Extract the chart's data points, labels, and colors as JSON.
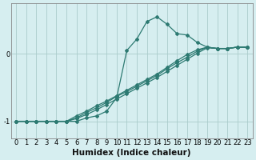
{
  "xlabel": "Humidex (Indice chaleur)",
  "background_color": "#d6eef0",
  "grid_color": "#aacccc",
  "line_color": "#2d7a72",
  "x_values": [
    0,
    1,
    2,
    3,
    4,
    5,
    6,
    7,
    8,
    9,
    10,
    11,
    12,
    13,
    14,
    15,
    16,
    17,
    18,
    19,
    20,
    21,
    22,
    23
  ],
  "lines": [
    [
      -1.0,
      -1.0,
      -1.0,
      -1.0,
      -1.0,
      -1.0,
      -1.0,
      -0.95,
      -0.92,
      -0.85,
      -0.65,
      0.05,
      0.22,
      0.48,
      0.55,
      0.44,
      0.3,
      0.28,
      0.17,
      0.1,
      0.08,
      0.08,
      0.1,
      0.1
    ],
    [
      -1.0,
      -1.0,
      -1.0,
      -1.0,
      -1.0,
      -1.0,
      -0.92,
      -0.85,
      -0.77,
      -0.7,
      -0.62,
      -0.54,
      -0.46,
      -0.38,
      -0.3,
      -0.2,
      -0.1,
      -0.01,
      0.06,
      0.1,
      0.08,
      0.08,
      0.1,
      0.1
    ],
    [
      -1.0,
      -1.0,
      -1.0,
      -1.0,
      -1.0,
      -1.0,
      -0.95,
      -0.87,
      -0.8,
      -0.72,
      -0.63,
      -0.56,
      -0.48,
      -0.4,
      -0.32,
      -0.22,
      -0.13,
      -0.05,
      0.04,
      0.1,
      0.08,
      0.08,
      0.1,
      0.1
    ],
    [
      -1.0,
      -1.0,
      -1.0,
      -1.0,
      -1.0,
      -1.0,
      -0.96,
      -0.9,
      -0.83,
      -0.75,
      -0.67,
      -0.59,
      -0.51,
      -0.43,
      -0.35,
      -0.26,
      -0.17,
      -0.08,
      0.01,
      0.09,
      0.08,
      0.08,
      0.1,
      0.1
    ]
  ],
  "yticks": [
    -1,
    0
  ],
  "ylim": [
    -1.25,
    0.75
  ],
  "xlim": [
    -0.5,
    23.5
  ],
  "xtick_labels": [
    "0",
    "1",
    "2",
    "3",
    "4",
    "5",
    "6",
    "7",
    "8",
    "9",
    "10",
    "11",
    "12",
    "13",
    "14",
    "15",
    "16",
    "17",
    "18",
    "19",
    "20",
    "21",
    "22",
    "23"
  ],
  "marker": "D",
  "markersize": 2.0,
  "linewidth": 0.9,
  "xlabel_fontsize": 7.5,
  "tick_fontsize": 6.0
}
